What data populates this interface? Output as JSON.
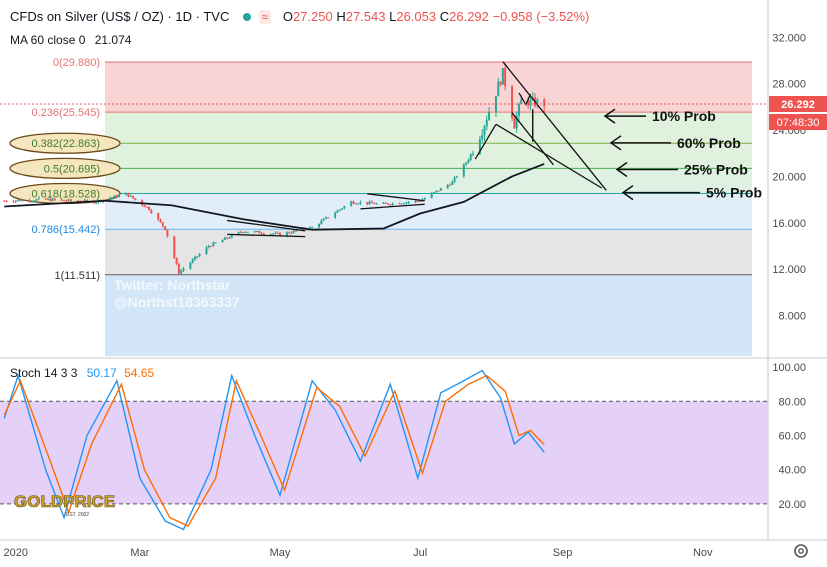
{
  "header": {
    "title": "CFDs on Silver (US$ / OZ) · 1D · TVC",
    "ohlc": {
      "o_label": "O",
      "o": "27.250",
      "h_label": "H",
      "h": "27.543",
      "l_label": "L",
      "l": "26.053",
      "c_label": "C",
      "c": "26.292",
      "change": "−0.958 (−3.52%)"
    },
    "ma_label": "MA 60 close 0",
    "ma_value": "21.074"
  },
  "price_tags": {
    "last_price": "26.292",
    "countdown": "07:48:30"
  },
  "watermark": {
    "line1": "Twitter: Northstar",
    "line2": "@Northst18363337"
  },
  "logo": {
    "text": "GOLDPRICE",
    "sub": "EST. 2002"
  },
  "stoch_header": {
    "label": "Stoch 14 3 3",
    "k": "50.17",
    "d": "54.65"
  },
  "colors": {
    "up": "#26a69a",
    "down": "#ef5350",
    "ma": "#131722",
    "k_line": "#2196f3",
    "d_line": "#ff6d00",
    "stoch_band": "#e1c8f7"
  },
  "chart_data": [
    {
      "type": "candlestick",
      "title": "CFDs on Silver (US$ / OZ) · 1D · TVC",
      "x_axis": {
        "tick_labels": [
          "2020",
          "Mar",
          "May",
          "Jul",
          "Sep",
          "Nov"
        ]
      },
      "y_axis": {
        "tick_labels": [
          "32.000",
          "28.000",
          "24.000",
          "20.000",
          "16.000",
          "12.000",
          "8.000"
        ],
        "ylim": [
          4.5,
          33.5
        ]
      },
      "close_approx": [
        {
          "x": "2020-01-02",
          "y": 17.9
        },
        {
          "x": "2020-01-20",
          "y": 18.0
        },
        {
          "x": "2020-02-10",
          "y": 17.8
        },
        {
          "x": "2020-02-24",
          "y": 18.5
        },
        {
          "x": "2020-03-05",
          "y": 17.2
        },
        {
          "x": "2020-03-12",
          "y": 15.5
        },
        {
          "x": "2020-03-18",
          "y": 11.7
        },
        {
          "x": "2020-03-31",
          "y": 14.0
        },
        {
          "x": "2020-04-15",
          "y": 15.3
        },
        {
          "x": "2020-05-01",
          "y": 15.0
        },
        {
          "x": "2020-05-15",
          "y": 15.6
        },
        {
          "x": "2020-06-01",
          "y": 17.8
        },
        {
          "x": "2020-06-15",
          "y": 17.6
        },
        {
          "x": "2020-07-01",
          "y": 17.9
        },
        {
          "x": "2020-07-15",
          "y": 19.5
        },
        {
          "x": "2020-07-22",
          "y": 21.5
        },
        {
          "x": "2020-07-28",
          "y": 24.0
        },
        {
          "x": "2020-08-06",
          "y": 28.9
        },
        {
          "x": "2020-08-11",
          "y": 24.5
        },
        {
          "x": "2020-08-14",
          "y": 26.5
        },
        {
          "x": "2020-08-24",
          "y": 26.292
        }
      ],
      "last_price": 26.292,
      "moving_average": {
        "name": "MA 60 close 0",
        "last": 21.074,
        "points": [
          {
            "x": "2020-01-02",
            "y": 17.4
          },
          {
            "x": "2020-02-15",
            "y": 17.9
          },
          {
            "x": "2020-03-15",
            "y": 17.5
          },
          {
            "x": "2020-04-15",
            "y": 16.3
          },
          {
            "x": "2020-05-15",
            "y": 15.4
          },
          {
            "x": "2020-06-15",
            "y": 15.5
          },
          {
            "x": "2020-07-01",
            "y": 16.8
          },
          {
            "x": "2020-07-20",
            "y": 17.8
          },
          {
            "x": "2020-08-10",
            "y": 20.0
          },
          {
            "x": "2020-08-24",
            "y": 21.074
          }
        ]
      },
      "fibonacci_levels": [
        {
          "label": "0(29.880)",
          "ratio": 0,
          "value": 29.88
        },
        {
          "label": "0.236(25.545)",
          "ratio": 0.236,
          "value": 25.545
        },
        {
          "label": "0.382(22.863)",
          "ratio": 0.382,
          "value": 22.863
        },
        {
          "label": "0.5(20.695)",
          "ratio": 0.5,
          "value": 20.695
        },
        {
          "label": "0.618(18.528)",
          "ratio": 0.618,
          "value": 18.528
        },
        {
          "label": "0.786(15.442)",
          "ratio": 0.786,
          "value": 15.442
        },
        {
          "label": "1(11.511)",
          "ratio": 1,
          "value": 11.511
        }
      ],
      "annotations": [
        {
          "text": "10% Prob",
          "target": 25.2
        },
        {
          "text": "60% Prob",
          "target": 22.9
        },
        {
          "text": "25% Prob",
          "target": 20.6
        },
        {
          "text": "5% Prob",
          "target": 18.6
        }
      ]
    },
    {
      "type": "line",
      "title": "Stoch 14 3 3",
      "y_axis": {
        "tick_labels": [
          "100.00",
          "80.00",
          "60.00",
          "40.00",
          "20.00"
        ],
        "ylim": [
          0,
          103
        ]
      },
      "bands": {
        "upper": 80,
        "lower": 20
      },
      "series": [
        {
          "name": "50.17",
          "points": [
            {
              "x": "2020-01-02",
              "y": 70
            },
            {
              "x": "2020-01-08",
              "y": 95
            },
            {
              "x": "2020-01-20",
              "y": 40
            },
            {
              "x": "2020-01-28",
              "y": 12
            },
            {
              "x": "2020-02-07",
              "y": 60
            },
            {
              "x": "2020-02-20",
              "y": 92
            },
            {
              "x": "2020-03-01",
              "y": 35
            },
            {
              "x": "2020-03-12",
              "y": 10
            },
            {
              "x": "2020-03-20",
              "y": 5
            },
            {
              "x": "2020-04-01",
              "y": 40
            },
            {
              "x": "2020-04-10",
              "y": 95
            },
            {
              "x": "2020-04-20",
              "y": 60
            },
            {
              "x": "2020-05-01",
              "y": 25
            },
            {
              "x": "2020-05-15",
              "y": 92
            },
            {
              "x": "2020-05-25",
              "y": 75
            },
            {
              "x": "2020-06-05",
              "y": 45
            },
            {
              "x": "2020-06-18",
              "y": 90
            },
            {
              "x": "2020-06-30",
              "y": 35
            },
            {
              "x": "2020-07-10",
              "y": 85
            },
            {
              "x": "2020-07-20",
              "y": 92
            },
            {
              "x": "2020-07-28",
              "y": 98
            },
            {
              "x": "2020-08-05",
              "y": 82
            },
            {
              "x": "2020-08-11",
              "y": 55
            },
            {
              "x": "2020-08-17",
              "y": 62
            },
            {
              "x": "2020-08-24",
              "y": 50.17
            }
          ]
        },
        {
          "name": "54.65",
          "points": [
            {
              "x": "2020-01-02",
              "y": 72
            },
            {
              "x": "2020-01-09",
              "y": 92
            },
            {
              "x": "2020-01-22",
              "y": 45
            },
            {
              "x": "2020-01-30",
              "y": 15
            },
            {
              "x": "2020-02-09",
              "y": 55
            },
            {
              "x": "2020-02-22",
              "y": 90
            },
            {
              "x": "2020-03-03",
              "y": 40
            },
            {
              "x": "2020-03-14",
              "y": 12
            },
            {
              "x": "2020-03-22",
              "y": 7
            },
            {
              "x": "2020-04-03",
              "y": 35
            },
            {
              "x": "2020-04-12",
              "y": 92
            },
            {
              "x": "2020-04-22",
              "y": 62
            },
            {
              "x": "2020-05-03",
              "y": 28
            },
            {
              "x": "2020-05-17",
              "y": 88
            },
            {
              "x": "2020-05-27",
              "y": 77
            },
            {
              "x": "2020-06-07",
              "y": 48
            },
            {
              "x": "2020-06-20",
              "y": 86
            },
            {
              "x": "2020-07-02",
              "y": 38
            },
            {
              "x": "2020-07-12",
              "y": 80
            },
            {
              "x": "2020-07-22",
              "y": 90
            },
            {
              "x": "2020-07-30",
              "y": 95
            },
            {
              "x": "2020-08-07",
              "y": 86
            },
            {
              "x": "2020-08-13",
              "y": 60
            },
            {
              "x": "2020-08-18",
              "y": 63
            },
            {
              "x": "2020-08-24",
              "y": 54.65
            }
          ]
        }
      ]
    }
  ]
}
